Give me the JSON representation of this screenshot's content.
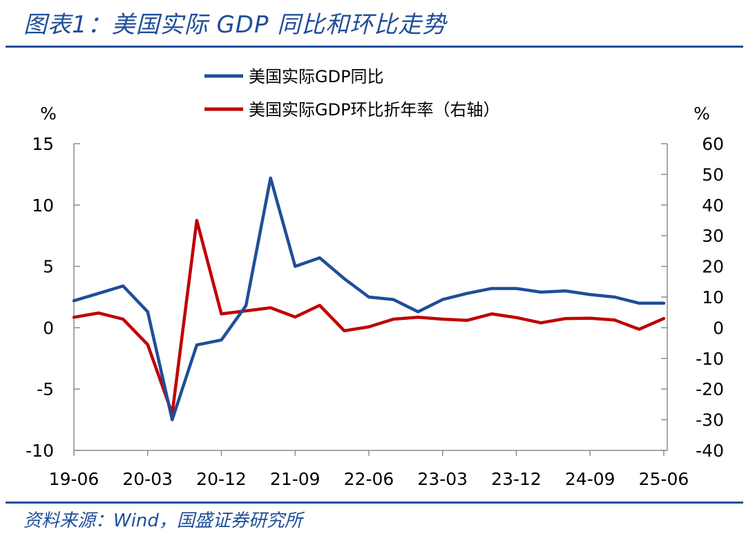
{
  "header": {
    "title": "图表1：美国实际 GDP 同比和环比走势"
  },
  "footer": {
    "source": "资料来源：Wind，国盛证券研究所"
  },
  "colors": {
    "accent": "#1f4e99",
    "series1": "#1f4e99",
    "series2": "#c00000"
  },
  "chart_data": {
    "type": "line",
    "title": "美国实际 GDP 同比和环比走势",
    "x": [
      "19-06",
      "19-09",
      "19-12",
      "20-03",
      "20-06",
      "20-09",
      "20-12",
      "21-03",
      "21-06",
      "21-09",
      "21-12",
      "22-03",
      "22-06",
      "22-09",
      "22-12",
      "23-03",
      "23-06",
      "23-09",
      "23-12",
      "24-03",
      "24-06",
      "24-09",
      "24-12",
      "25-03",
      "25-06"
    ],
    "xticks": [
      "19-06",
      "20-03",
      "20-12",
      "21-09",
      "22-06",
      "23-03",
      "23-12",
      "24-09",
      "25-06"
    ],
    "y_left": {
      "unit": "%",
      "ylim": [
        -10,
        15
      ],
      "ticks": [
        "-10",
        "-5",
        "0",
        "5",
        "10",
        "15"
      ]
    },
    "y_right": {
      "unit": "%",
      "ylim": [
        -40,
        60
      ],
      "ticks": [
        "-40",
        "-30",
        "-20",
        "-10",
        "0",
        "10",
        "20",
        "30",
        "40",
        "50",
        "60"
      ]
    },
    "legend_position": "top-center",
    "grid": false,
    "series": [
      {
        "name": "美国实际GDP同比",
        "axis": "left",
        "color": "#1f4e99",
        "values": [
          2.2,
          2.8,
          3.4,
          1.3,
          -7.5,
          -1.4,
          -1.0,
          1.8,
          12.2,
          5.0,
          5.7,
          4.0,
          2.5,
          2.3,
          1.3,
          2.3,
          2.8,
          3.2,
          3.2,
          2.9,
          3.0,
          2.7,
          2.5,
          2.0,
          2.0
        ]
      },
      {
        "name": "美国实际GDP环比折年率（右轴）",
        "axis": "right",
        "color": "#c00000",
        "values": [
          3.4,
          4.8,
          2.8,
          -5.5,
          -28.0,
          35.0,
          4.5,
          5.5,
          6.5,
          3.5,
          7.3,
          -1.0,
          0.3,
          2.8,
          3.4,
          2.8,
          2.4,
          4.5,
          3.3,
          1.6,
          3.0,
          3.1,
          2.5,
          -0.5,
          3.0
        ]
      }
    ]
  }
}
